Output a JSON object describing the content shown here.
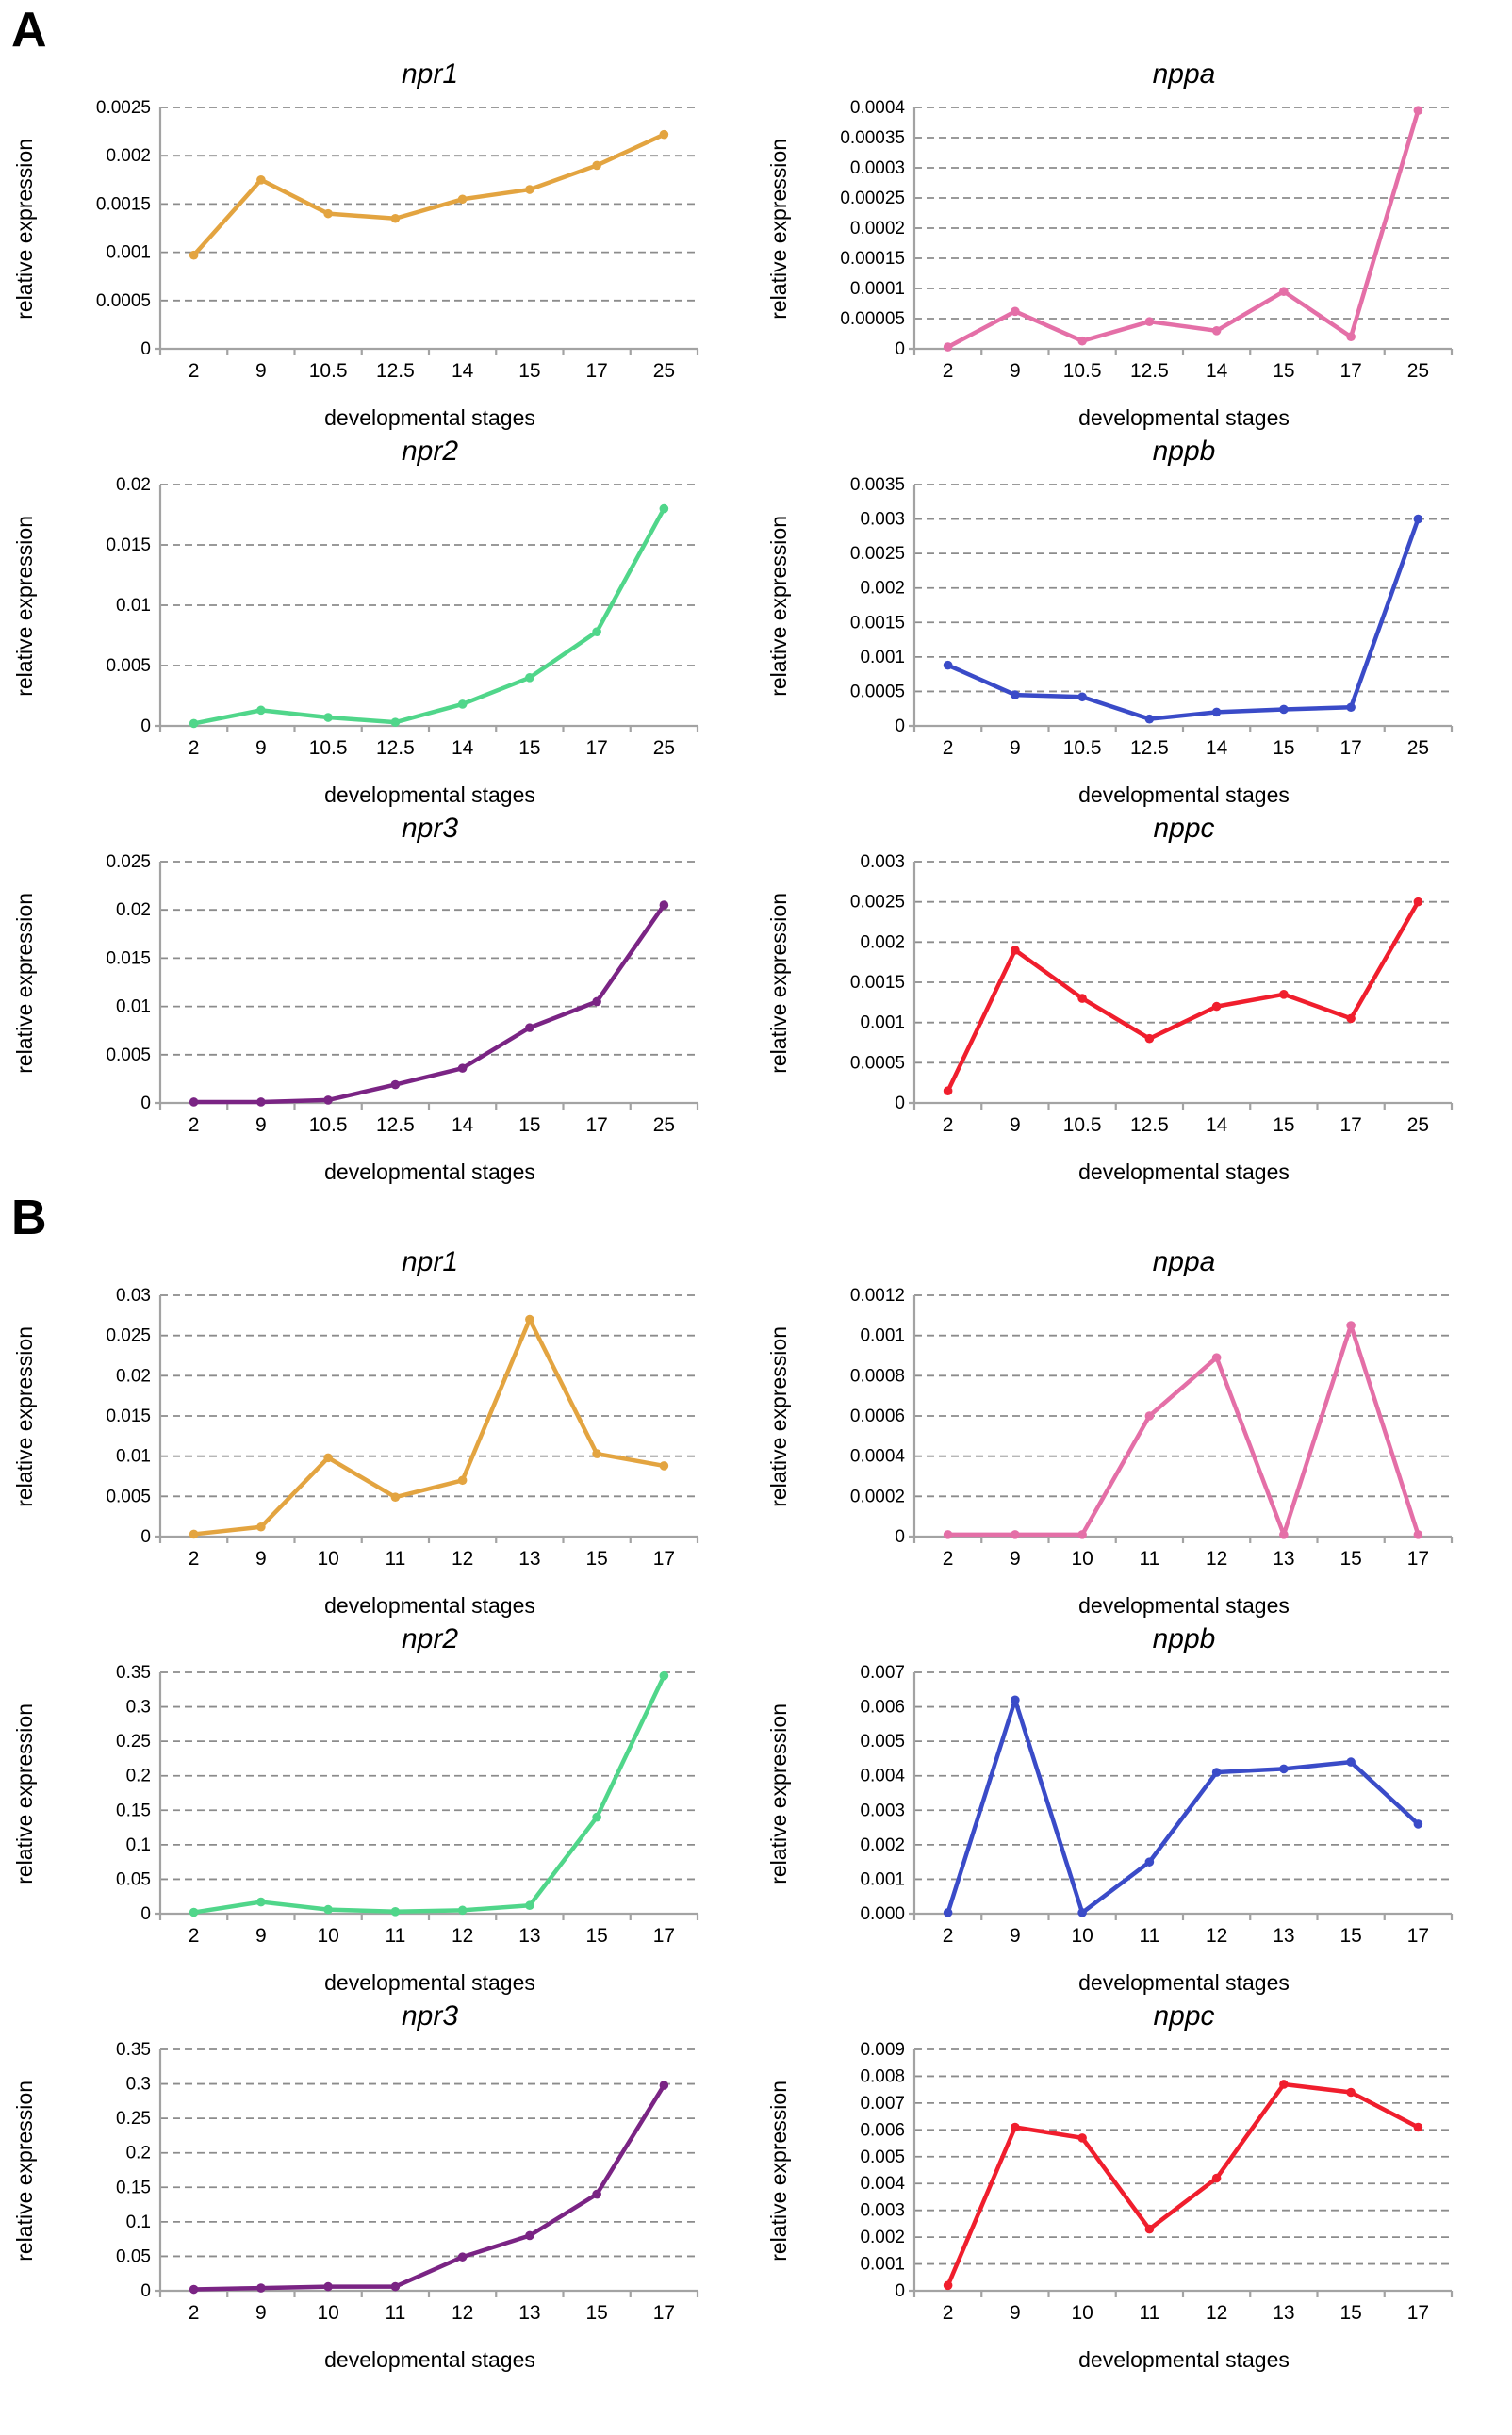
{
  "figure": {
    "panel_a_label": "A",
    "panel_b_label": "B"
  },
  "chart_data": [
    {
      "panel": "A",
      "type": "line",
      "title": "npr1",
      "xlabel": "developmental stages",
      "ylabel": "relative expression",
      "color": "#E3A440",
      "categories": [
        "2",
        "9",
        "10.5",
        "12.5",
        "14",
        "15",
        "17",
        "25"
      ],
      "values": [
        0.00097,
        0.00175,
        0.0014,
        0.00135,
        0.00155,
        0.00165,
        0.0019,
        0.00222
      ],
      "ylim": [
        0,
        0.0025
      ],
      "y_ticks": [
        "0",
        "0.0005",
        "0.001",
        "0.0015",
        "0.002",
        "0.0025"
      ],
      "grid": "dashed",
      "legend": "none"
    },
    {
      "panel": "A",
      "type": "line",
      "title": "nppa",
      "xlabel": "developmental stages",
      "ylabel": "relative expression",
      "color": "#E46FA7",
      "categories": [
        "2",
        "9",
        "10.5",
        "12.5",
        "14",
        "15",
        "17",
        "25"
      ],
      "values": [
        3e-06,
        6.2e-05,
        1.3e-05,
        4.5e-05,
        3e-05,
        9.5e-05,
        2e-05,
        0.000395
      ],
      "ylim": [
        0,
        0.0004
      ],
      "y_ticks": [
        "0",
        "0.00005",
        "0.0001",
        "0.00015",
        "0.0002",
        "0.00025",
        "0.0003",
        "0.00035",
        "0.0004"
      ],
      "grid": "dashed",
      "legend": "none"
    },
    {
      "panel": "A",
      "type": "line",
      "title": "npr2",
      "xlabel": "developmental stages",
      "ylabel": "relative expression",
      "color": "#50D68A",
      "categories": [
        "2",
        "9",
        "10.5",
        "12.5",
        "14",
        "15",
        "17",
        "25"
      ],
      "values": [
        0.0002,
        0.0013,
        0.0007,
        0.0003,
        0.0018,
        0.004,
        0.0078,
        0.018
      ],
      "ylim": [
        0,
        0.02
      ],
      "y_ticks": [
        "0",
        "0.005",
        "0.01",
        "0.015",
        "0.02"
      ],
      "grid": "dashed",
      "legend": "none"
    },
    {
      "panel": "A",
      "type": "line",
      "title": "nppb",
      "xlabel": "developmental stages",
      "ylabel": "relative expression",
      "color": "#3A4BC8",
      "categories": [
        "2",
        "9",
        "10.5",
        "12.5",
        "14",
        "15",
        "17",
        "25"
      ],
      "values": [
        0.00088,
        0.00045,
        0.00042,
        0.0001,
        0.0002,
        0.00024,
        0.00027,
        0.003
      ],
      "ylim": [
        0,
        0.0035
      ],
      "y_ticks": [
        "0",
        "0.0005",
        "0.001",
        "0.0015",
        "0.002",
        "0.0025",
        "0.003",
        "0.0035"
      ],
      "grid": "dashed",
      "legend": "none"
    },
    {
      "panel": "A",
      "type": "line",
      "title": "npr3",
      "xlabel": "developmental stages",
      "ylabel": "relative expression",
      "color": "#7A2484",
      "categories": [
        "2",
        "9",
        "10.5",
        "12.5",
        "14",
        "15",
        "17",
        "25"
      ],
      "values": [
        0.0001,
        0.0001,
        0.0003,
        0.0019,
        0.0036,
        0.0078,
        0.0105,
        0.0205
      ],
      "ylim": [
        0,
        0.025
      ],
      "y_ticks": [
        "0",
        "0.005",
        "0.01",
        "0.015",
        "0.02",
        "0.025"
      ],
      "grid": "dashed",
      "legend": "none"
    },
    {
      "panel": "A",
      "type": "line",
      "title": "nppc",
      "xlabel": "developmental stages",
      "ylabel": "relative expression",
      "color": "#F01E2D",
      "categories": [
        "2",
        "9",
        "10.5",
        "12.5",
        "14",
        "15",
        "17",
        "25"
      ],
      "values": [
        0.00015,
        0.0019,
        0.0013,
        0.0008,
        0.0012,
        0.00135,
        0.00105,
        0.0025
      ],
      "ylim": [
        0,
        0.003
      ],
      "y_ticks": [
        "0",
        "0.0005",
        "0.001",
        "0.0015",
        "0.002",
        "0.0025",
        "0.003"
      ],
      "grid": "dashed",
      "legend": "none"
    },
    {
      "panel": "B",
      "type": "line",
      "title": "npr1",
      "xlabel": "developmental stages",
      "ylabel": "relative expression",
      "color": "#E3A440",
      "categories": [
        "2",
        "9",
        "10",
        "11",
        "12",
        "13",
        "15",
        "17"
      ],
      "values": [
        0.0003,
        0.0012,
        0.0098,
        0.0049,
        0.007,
        0.027,
        0.0103,
        0.0088
      ],
      "ylim": [
        0,
        0.03
      ],
      "y_ticks": [
        "0",
        "0.005",
        "0.01",
        "0.015",
        "0.02",
        "0.025",
        "0.03"
      ],
      "grid": "dashed",
      "legend": "none"
    },
    {
      "panel": "B",
      "type": "line",
      "title": "nppa",
      "xlabel": "developmental stages",
      "ylabel": "relative expression",
      "color": "#E46FA7",
      "categories": [
        "2",
        "9",
        "10",
        "11",
        "12",
        "13",
        "15",
        "17"
      ],
      "values": [
        1e-05,
        1e-05,
        1e-05,
        0.0006,
        0.00089,
        1e-05,
        0.00105,
        1e-05
      ],
      "ylim": [
        0,
        0.0012
      ],
      "y_ticks": [
        "0",
        "0.0002",
        "0.0004",
        "0.0006",
        "0.0008",
        "0.001",
        "0.0012"
      ],
      "grid": "dashed",
      "legend": "none"
    },
    {
      "panel": "B",
      "type": "line",
      "title": "npr2",
      "xlabel": "developmental stages",
      "ylabel": "relative expression",
      "color": "#50D68A",
      "categories": [
        "2",
        "9",
        "10",
        "11",
        "12",
        "13",
        "15",
        "17"
      ],
      "values": [
        0.002,
        0.017,
        0.006,
        0.003,
        0.005,
        0.012,
        0.14,
        0.345
      ],
      "ylim": [
        0,
        0.35
      ],
      "y_ticks": [
        "0",
        "0.05",
        "0.1",
        "0.15",
        "0.2",
        "0.25",
        "0.3",
        "0.35"
      ],
      "grid": "dashed",
      "legend": "none"
    },
    {
      "panel": "B",
      "type": "line",
      "title": "nppb",
      "xlabel": "developmental stages",
      "ylabel": "relative expression",
      "color": "#3A4BC8",
      "categories": [
        "2",
        "9",
        "10",
        "11",
        "12",
        "13",
        "15",
        "17"
      ],
      "values": [
        3e-05,
        0.0062,
        3e-05,
        0.0015,
        0.0041,
        0.0042,
        0.0044,
        0.0026
      ],
      "ylim": [
        0,
        0.007
      ],
      "y_ticks": [
        "0.000",
        "0.001",
        "0.002",
        "0.003",
        "0.004",
        "0.005",
        "0.006",
        "0.007"
      ],
      "grid": "dashed",
      "legend": "none"
    },
    {
      "panel": "B",
      "type": "line",
      "title": "npr3",
      "xlabel": "developmental stages",
      "ylabel": "relative expression",
      "color": "#7A2484",
      "categories": [
        "2",
        "9",
        "10",
        "11",
        "12",
        "13",
        "15",
        "17"
      ],
      "values": [
        0.002,
        0.004,
        0.006,
        0.006,
        0.049,
        0.08,
        0.14,
        0.298
      ],
      "ylim": [
        0,
        0.35
      ],
      "y_ticks": [
        "0",
        "0.05",
        "0.1",
        "0.15",
        "0.2",
        "0.25",
        "0.3",
        "0.35"
      ],
      "grid": "dashed",
      "legend": "none"
    },
    {
      "panel": "B",
      "type": "line",
      "title": "nppc",
      "xlabel": "developmental stages",
      "ylabel": "relative expression",
      "color": "#F01E2D",
      "categories": [
        "2",
        "9",
        "10",
        "11",
        "12",
        "13",
        "15",
        "17"
      ],
      "values": [
        0.0002,
        0.0061,
        0.0057,
        0.0023,
        0.0042,
        0.0077,
        0.0074,
        0.0061
      ],
      "ylim": [
        0,
        0.009
      ],
      "y_ticks": [
        "0",
        "0.001",
        "0.002",
        "0.003",
        "0.004",
        "0.005",
        "0.006",
        "0.007",
        "0.008",
        "0.009"
      ],
      "grid": "dashed",
      "legend": "none"
    }
  ]
}
